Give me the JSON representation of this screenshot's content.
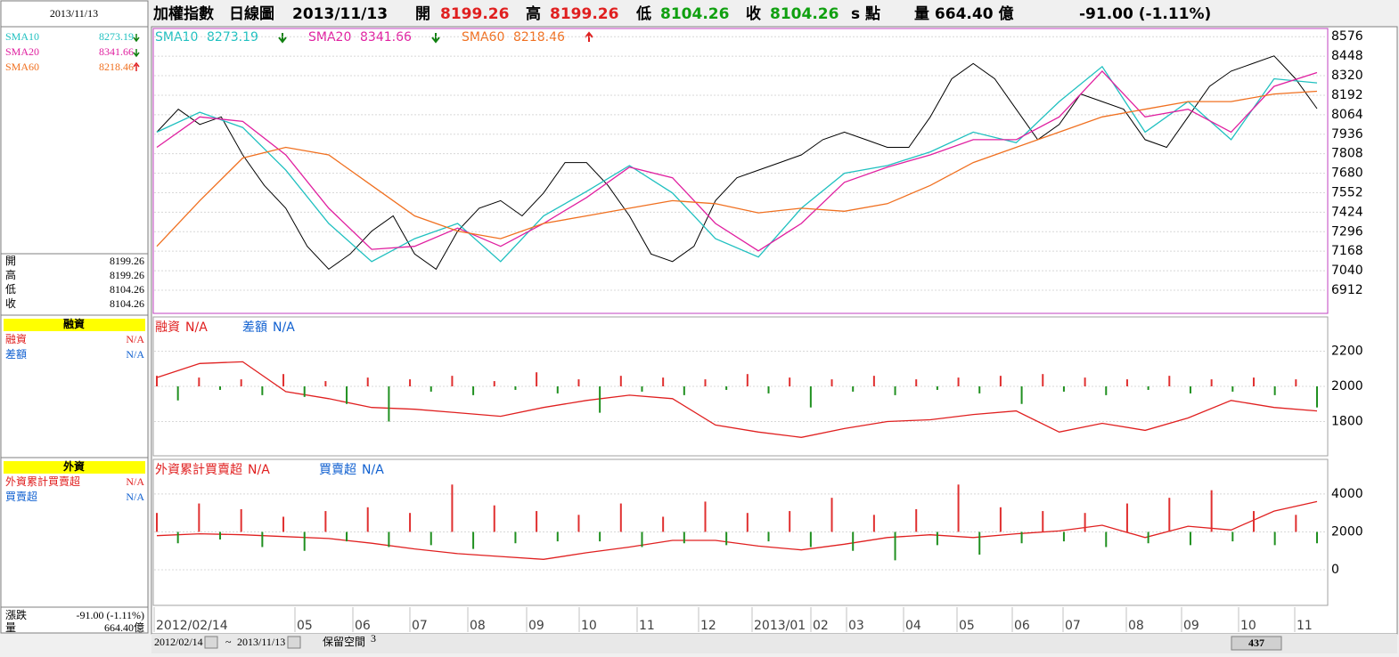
{
  "header": {
    "index_name": "加權指數",
    "chart_kind": "日線圖",
    "date": "2013/11/13",
    "open_label": "開",
    "open": "8199.26",
    "high_label": "高",
    "high": "8199.26",
    "low_label": "低",
    "low": "8104.26",
    "close_label": "收",
    "close": "8104.26",
    "unit": "s 點",
    "volume": "量 664.40 億",
    "change": "-91.00 (-1.11%)"
  },
  "sidebar": {
    "date": "2013/11/13",
    "ohlc": [
      {
        "label": "開",
        "value": "8199.26"
      },
      {
        "label": "高",
        "value": "8199.26"
      },
      {
        "label": "低",
        "value": "8104.26"
      },
      {
        "label": "收",
        "value": "8104.26"
      }
    ],
    "margin_title": "融資",
    "foreign_title": "外資",
    "change_label": "漲跌",
    "change": "-91.00 (-1.11%)",
    "volume_label": "量",
    "volume": "664.40億"
  },
  "charts": [
    {
      "type": "combo",
      "ylim": [
        6760,
        8630
      ],
      "yticks": [
        6912,
        7040,
        7168,
        7296,
        7424,
        7552,
        7680,
        7808,
        7936,
        8064,
        8192,
        8320,
        8448,
        8576
      ],
      "series": [
        {
          "type": "line",
          "color": "#000000",
          "values": [
            7950,
            8100,
            8000,
            8050,
            7800,
            7600,
            7450,
            7200,
            7050,
            7150,
            7300,
            7400,
            7150,
            7050,
            7300,
            7450,
            7500,
            7400,
            7550,
            7750,
            7750,
            7600,
            7400,
            7150,
            7100,
            7200,
            7500,
            7650,
            7700,
            7750,
            7800,
            7900,
            7950,
            7900,
            7850,
            7850,
            8050,
            8300,
            8400,
            8300,
            8100,
            7900,
            8000,
            8200,
            8150,
            8100,
            7900,
            7850,
            8050,
            8250,
            8350,
            8400,
            8450,
            8300,
            8104
          ]
        },
        {
          "type": "line",
          "name": "SMA10",
          "label": "8273.19",
          "color": "#20c0c0",
          "values": [
            7950,
            8080,
            7980,
            7700,
            7350,
            7100,
            7250,
            7350,
            7100,
            7400,
            7560,
            7730,
            7550,
            7250,
            7130,
            7450,
            7680,
            7730,
            7820,
            7950,
            7880,
            8150,
            8380,
            7950,
            8150,
            7900,
            8300,
            8273
          ]
        },
        {
          "type": "line",
          "name": "SMA20",
          "label": "8341.66",
          "color": "#e020a0",
          "values": [
            7850,
            8050,
            8020,
            7800,
            7450,
            7180,
            7200,
            7320,
            7200,
            7350,
            7520,
            7720,
            7650,
            7350,
            7170,
            7350,
            7620,
            7720,
            7800,
            7900,
            7900,
            8050,
            8350,
            8050,
            8100,
            7950,
            8250,
            8341
          ]
        },
        {
          "type": "line",
          "name": "SMA60",
          "label": "8218.46",
          "color": "#f07020",
          "values": [
            7200,
            7500,
            7780,
            7850,
            7800,
            7600,
            7400,
            7300,
            7250,
            7350,
            7400,
            7450,
            7500,
            7480,
            7420,
            7450,
            7430,
            7480,
            7600,
            7750,
            7850,
            7950,
            8050,
            8100,
            8150,
            8150,
            8200,
            8218
          ]
        }
      ]
    },
    {
      "type": "combo",
      "ylim": [
        1605,
        2395
      ],
      "yticks": [
        1800,
        2000,
        2200
      ],
      "baseline": 2000,
      "up_color": "#e03030",
      "down_color": "#209020",
      "series": [
        {
          "type": "line",
          "name": "融資",
          "label": "N/A",
          "color": "#e02020",
          "values": [
            2050,
            2130,
            2140,
            1970,
            1930,
            1880,
            1870,
            1850,
            1830,
            1880,
            1920,
            1950,
            1930,
            1780,
            1740,
            1710,
            1760,
            1800,
            1810,
            1840,
            1860,
            1740,
            1790,
            1750,
            1820,
            1920,
            1880,
            1860
          ]
        },
        {
          "type": "bar",
          "name": "差額",
          "label": "N/A",
          "color": "#1060d0",
          "values": [
            2060,
            1920,
            2050,
            1980,
            2040,
            1950,
            2070,
            1940,
            2030,
            1900,
            2050,
            1800,
            2040,
            1970,
            2060,
            1950,
            2030,
            1980,
            2080,
            1960,
            2040,
            1850,
            2060,
            1970,
            2050,
            1950,
            2040,
            1980,
            2070,
            1960,
            2050,
            1880,
            2040,
            1970,
            2060,
            1950,
            2040,
            1980,
            2050,
            1960,
            2060,
            1900,
            2070,
            1970,
            2050,
            1950,
            2040,
            1980,
            2060,
            1960,
            2040,
            1970,
            2050,
            1950,
            2040,
            1880
          ]
        }
      ]
    },
    {
      "type": "combo",
      "ylim": [
        -1880,
        5830
      ],
      "yticks": [
        0,
        2000,
        4000
      ],
      "baseline": 2000,
      "up_color": "#e03030",
      "down_color": "#209020",
      "series": [
        {
          "type": "line",
          "name": "外資累計買賣超",
          "label": "N/A",
          "color": "#e02020",
          "values": [
            1800,
            1900,
            1850,
            1750,
            1650,
            1400,
            1100,
            850,
            700,
            550,
            900,
            1200,
            1550,
            1550,
            1250,
            1050,
            1350,
            1700,
            1850,
            1700,
            1900,
            2050,
            2350,
            1700,
            2300,
            2100,
            3100,
            3600
          ]
        },
        {
          "type": "bar",
          "name": "買賣超",
          "label": "N/A",
          "color": "#1060d0",
          "values": [
            3000,
            1400,
            3500,
            1600,
            3200,
            1200,
            2800,
            1000,
            3100,
            1500,
            3300,
            1200,
            3000,
            1300,
            4500,
            1100,
            3400,
            1400,
            3100,
            1500,
            2900,
            1500,
            3500,
            1200,
            2800,
            1400,
            3600,
            1300,
            3000,
            1500,
            3100,
            1200,
            3800,
            1000,
            2900,
            500,
            3200,
            1300,
            4500,
            800,
            3300,
            1400,
            3100,
            1500,
            3000,
            1200,
            3500,
            1400,
            3800,
            1300,
            4200,
            1500,
            3100,
            1300,
            2900,
            1400
          ]
        }
      ]
    }
  ],
  "xaxis": {
    "labels": [
      "2012/02/14",
      "05",
      "06",
      "07",
      "08",
      "09",
      "10",
      "11",
      "12",
      "2013/01",
      "02",
      "03",
      "04",
      "05",
      "06",
      "07",
      "08",
      "09",
      "10",
      "11"
    ]
  },
  "toolbar": {
    "start": "2012/02/14",
    "sep": "~",
    "end": "2013/11/13",
    "reserve": "保留空間",
    "reserve_n": "3",
    "count": "437"
  }
}
